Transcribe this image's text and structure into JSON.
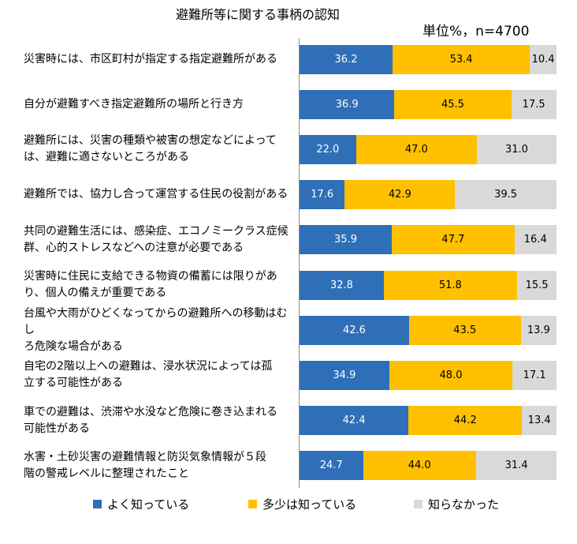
{
  "chart_data": {
    "type": "bar",
    "stacked": true,
    "orientation": "horizontal",
    "title": "避難所等に関する事柄の認知",
    "unit_note": "単位%，n=4700",
    "xlim": [
      0,
      100
    ],
    "categories": [
      [
        "災害時には、市区町村が指定する指定避難所がある"
      ],
      [
        "自分が避難すべき指定避難所の場所と行き方"
      ],
      [
        "避難所には、災害の種類や被害の想定などによって",
        "は、避難に適さないところがある"
      ],
      [
        "避難所では、協力し合って運営する住民の役割がある"
      ],
      [
        "共同の避難生活には、感染症、エコノミークラス症候",
        "群、心的ストレスなどへの注意が必要である"
      ],
      [
        "災害時に住民に支給できる物資の備蓄には限りがあ",
        "り、個人の備えが重要である"
      ],
      [
        "台風や大雨がひどくなってからの避難所への移動はむし",
        "ろ危険な場合がある"
      ],
      [
        "自宅の2階以上への避難は、浸水状況によっては孤",
        "立する可能性がある"
      ],
      [
        "車での避難は、渋滞や水没など危険に巻き込まれる",
        "可能性がある"
      ],
      [
        "水害・土砂災害の避難情報と防災気象情報が５段",
        "階の警戒レベルに整理されたこと"
      ]
    ],
    "series": [
      {
        "name": "よく知っている",
        "color": "#2f6fb7",
        "label_color": "#ffffff",
        "values": [
          36.2,
          36.9,
          22.0,
          17.6,
          35.9,
          32.8,
          42.6,
          34.9,
          42.4,
          24.7
        ]
      },
      {
        "name": "多少は知っている",
        "color": "#ffc000",
        "label_color": "#000000",
        "values": [
          53.4,
          45.5,
          47.0,
          42.9,
          47.7,
          51.8,
          43.5,
          48.0,
          44.2,
          44.0
        ]
      },
      {
        "name": "知らなかった",
        "color": "#d9d9d9",
        "label_color": "#000000",
        "values": [
          10.4,
          17.5,
          31.0,
          39.5,
          16.4,
          15.5,
          13.9,
          17.1,
          13.4,
          31.4
        ]
      }
    ],
    "legend_position": "bottom",
    "grid": false
  }
}
